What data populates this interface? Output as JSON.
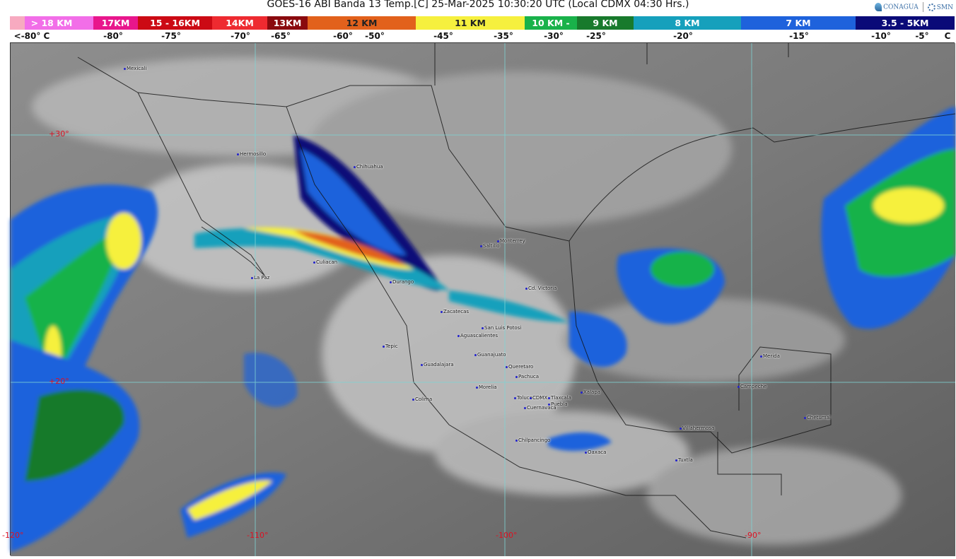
{
  "header": {
    "title": "GOES-16 ABI Banda 13 Temp.[C] 25-Mar-2025 10:30:20 UTC (Local CDMX  04:30 Hrs.)",
    "logos": [
      "CONAGUA",
      "SMN"
    ]
  },
  "legend": {
    "segments": [
      {
        "label": "> 18 KM",
        "color": "#f26ee8"
      },
      {
        "label": "17KM",
        "color": "#e8168c"
      },
      {
        "label": "15 - 16KM",
        "color": "#cc0a14"
      },
      {
        "label": "14KM",
        "color": "#ee2a30"
      },
      {
        "label": "13KM",
        "color": "#8a0a0e"
      },
      {
        "label": "12 KM",
        "color": "#e2611c"
      },
      {
        "label": "11 KM",
        "color": "#f6f03e"
      },
      {
        "label": "10 KM -",
        "color": "#19b24a"
      },
      {
        "label": "9 KM",
        "color": "#187a2c"
      },
      {
        "label": "8 KM",
        "color": "#16a0bc"
      },
      {
        "label": "7 KM",
        "color": "#1e62dc"
      },
      {
        "label": "3.5 - 5KM",
        "color": "#0a0a78"
      }
    ],
    "temps": [
      "<-80° C",
      "-80°",
      "-75°",
      "-70°",
      "-65°",
      "-60°",
      "-50°",
      "-45°",
      "-35°",
      "-30°",
      "-25°",
      "-20°",
      "-15°",
      "-10°",
      "-5°",
      "C"
    ]
  },
  "map": {
    "graticule": {
      "lat": [
        "+30°",
        "+20°"
      ],
      "lon": [
        "-120°",
        "-110°",
        "-100°",
        "-90°"
      ]
    },
    "cities": [
      "Mexicali",
      "Hermosillo",
      "Chihuahua",
      "Culiacan",
      "La Paz",
      "Durango",
      "Saltillo",
      "Monterrey",
      "Cd. Victoria",
      "Zacatecas",
      "San Luis Potosi",
      "Aguascalientes",
      "Tepic",
      "Guanajuato",
      "Guadalajara",
      "Queretaro",
      "Pachuca",
      "Morelia",
      "Colima",
      "Toluca",
      "CDMX",
      "Tlaxcala",
      "Puebla",
      "Cuernavaca",
      "Xalapa",
      "Chilpancingo",
      "Oaxaca",
      "Villahermosa",
      "Tuxtla",
      "Merida",
      "Campeche",
      "Chetumal"
    ]
  }
}
